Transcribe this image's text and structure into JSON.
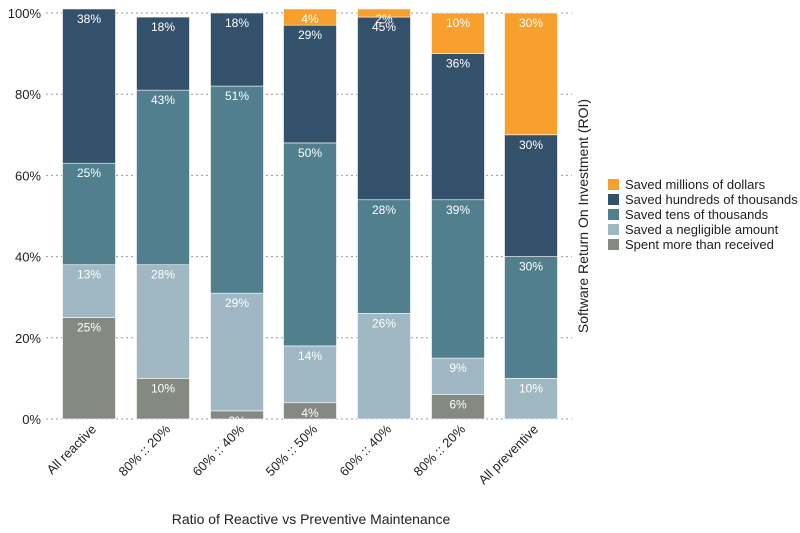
{
  "chart_data": {
    "type": "bar",
    "stacked": true,
    "xlabel": "Ratio of Reactive vs Preventive Maintenance",
    "ylabel": "Software Return On Investment (ROI)",
    "ylim": [
      0,
      100
    ],
    "yticks": [
      0,
      20,
      40,
      60,
      80,
      100
    ],
    "ytick_labels": [
      "0%",
      "20%",
      "40%",
      "60%",
      "80%",
      "100%"
    ],
    "grid": true,
    "legend_position": "right",
    "categories": [
      "All reactive",
      "80% :: 20%",
      "60% :: 40%",
      "50% :: 50%",
      "60% :: 40%",
      "80% :: 20%",
      "All preventive"
    ],
    "series": [
      {
        "name": "Spent more than received",
        "color": "#848a82",
        "values": [
          25,
          10,
          2,
          4,
          0,
          6,
          0
        ],
        "labels": [
          "25%",
          "10%",
          "2%",
          "4%",
          "",
          "6%",
          ""
        ]
      },
      {
        "name": "Saved a negligible amount",
        "color": "#9fb8c3",
        "values": [
          13,
          28,
          29,
          14,
          26,
          9,
          10
        ],
        "labels": [
          "13%",
          "28%",
          "29%",
          "14%",
          "26%",
          "9%",
          "10%"
        ]
      },
      {
        "name": "Saved tens of thousands",
        "color": "#517f8d",
        "values": [
          25,
          43,
          51,
          50,
          28,
          39,
          30
        ],
        "labels": [
          "25%",
          "43%",
          "51%",
          "50%",
          "28%",
          "39%",
          "30%"
        ]
      },
      {
        "name": "Saved hundreds of thousands",
        "color": "#34516b",
        "values": [
          38,
          18,
          18,
          29,
          45,
          36,
          30
        ],
        "labels": [
          "38%",
          "18%",
          "18%",
          "29%",
          "45%",
          "36%",
          "30%"
        ]
      },
      {
        "name": "Saved millions of dollars",
        "color": "#f8a02e",
        "values": [
          0,
          0,
          0,
          4,
          2,
          10,
          30
        ],
        "labels": [
          "",
          "",
          "",
          "4%",
          "2%",
          "10%",
          "30%"
        ]
      }
    ],
    "legend_order": [
      "Saved millions of dollars",
      "Saved hundreds of thousands",
      "Saved tens of thousands",
      "Saved a negligible amount",
      "Spent more than received"
    ]
  }
}
